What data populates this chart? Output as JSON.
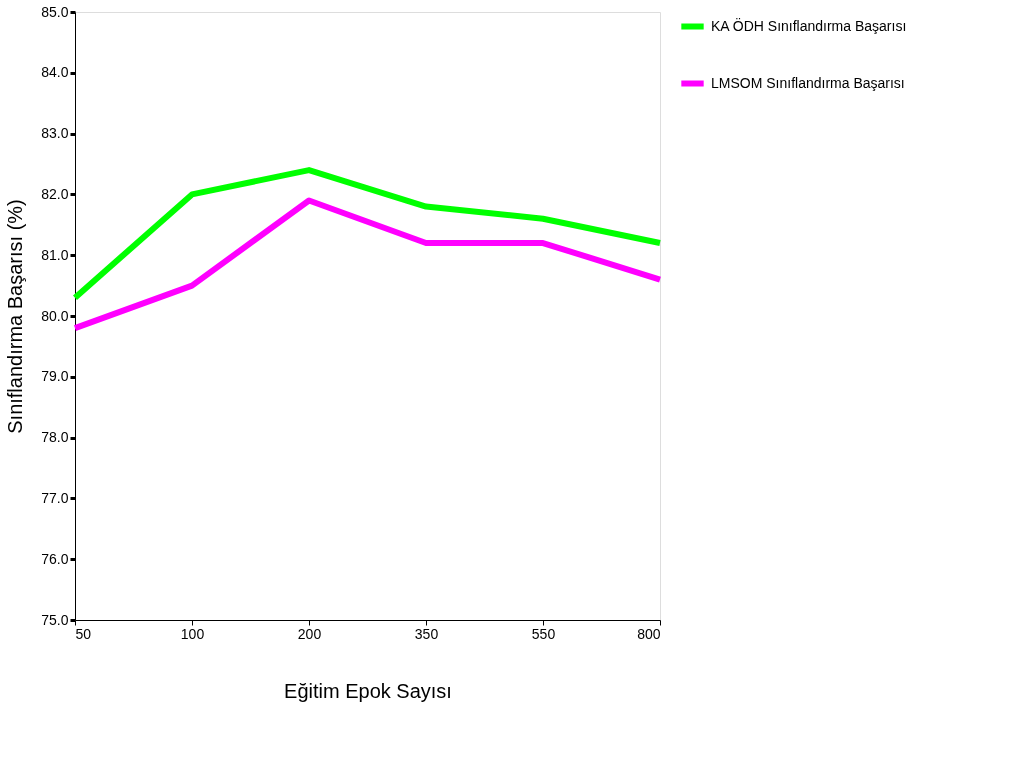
{
  "chart_data": {
    "type": "line",
    "xlabel": "Eğitim Epok Sayısı",
    "ylabel": "Sınıflandırma Başarısı (%)",
    "categories": [
      "50",
      "100",
      "200",
      "350",
      "550",
      "800"
    ],
    "series": [
      {
        "name": "KA ÖDH Sınıflandırma Başarısı",
        "color": "#00ff00",
        "values": [
          80.3,
          82.0,
          82.4,
          81.8,
          81.6,
          81.2
        ]
      },
      {
        "name": "LMSOM Sınıflandırma Başarısı",
        "color": "#ff00ff",
        "values": [
          79.8,
          80.5,
          81.9,
          81.2,
          81.2,
          80.6
        ]
      }
    ],
    "ylim": [
      75,
      85
    ],
    "yticks": [
      {
        "value": 75,
        "label": "75.0"
      },
      {
        "value": 76,
        "label": "76.0"
      },
      {
        "value": 77,
        "label": "77.0"
      },
      {
        "value": 78,
        "label": "78.0"
      },
      {
        "value": 79,
        "label": "79.0"
      },
      {
        "value": 80,
        "label": "80.0"
      },
      {
        "value": 81,
        "label": "81.0"
      },
      {
        "value": 82,
        "label": "82.0"
      },
      {
        "value": 83,
        "label": "83.0"
      },
      {
        "value": 84,
        "label": "84.0"
      },
      {
        "value": 85,
        "label": "85.0"
      }
    ],
    "grid": false,
    "legend": "right",
    "marker": "none",
    "line_style": "solid"
  }
}
